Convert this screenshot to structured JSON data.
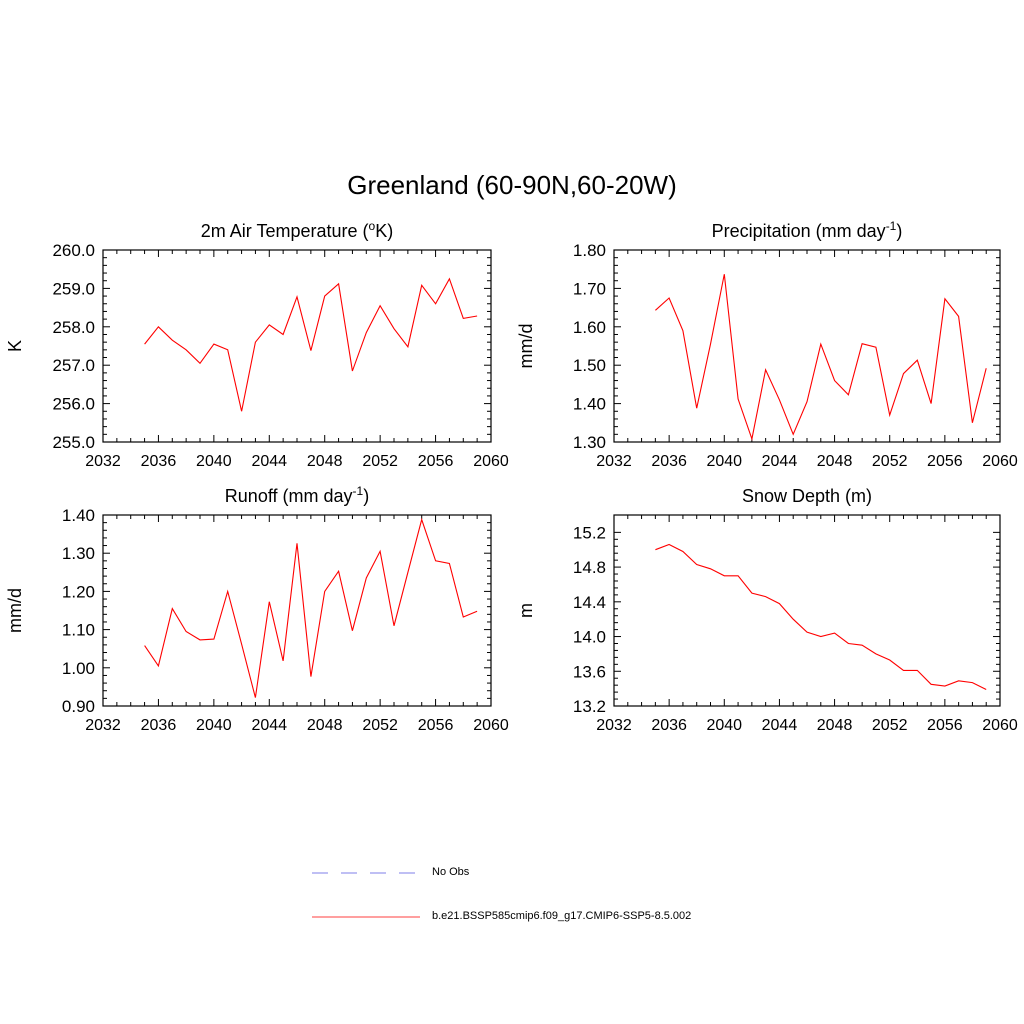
{
  "title": "Greenland (60-90N,60-20W)",
  "legend": {
    "items": [
      {
        "label": "No Obs",
        "color": "#9999ee",
        "dash": true
      },
      {
        "label": "b.e21.BSSP585cmip6.f09_g17.CMIP6-SSP5-8.5.002",
        "color": "#ff3333",
        "dash": false
      }
    ]
  },
  "chart_data": [
    {
      "type": "line",
      "title_main": "2m Air Temperature (",
      "title_sup": "o",
      "title_rest": "K)",
      "ylabel": "K",
      "xlim": [
        2032,
        2060
      ],
      "ylim": [
        255.0,
        260.0
      ],
      "xticks": [
        2032,
        2036,
        2040,
        2044,
        2048,
        2052,
        2056,
        2060
      ],
      "yticks": [
        "255.0",
        "256.0",
        "257.0",
        "258.0",
        "259.0",
        "260.0"
      ],
      "x": [
        2035,
        2036,
        2037,
        2038,
        2039,
        2040,
        2041,
        2042,
        2043,
        2044,
        2045,
        2046,
        2047,
        2048,
        2049,
        2050,
        2051,
        2052,
        2053,
        2054,
        2055,
        2056,
        2057,
        2058,
        2059
      ],
      "series": [
        {
          "color": "#ff0000",
          "values": [
            257.55,
            258.0,
            257.65,
            257.4,
            257.05,
            257.55,
            257.4,
            255.8,
            257.6,
            258.05,
            257.8,
            258.78,
            257.38,
            258.8,
            259.12,
            256.85,
            257.85,
            258.55,
            257.95,
            257.48,
            259.08,
            258.6,
            259.25,
            258.22,
            258.28
          ]
        }
      ]
    },
    {
      "type": "line",
      "title_main": "Precipitation (mm day",
      "title_sup": "-1",
      "title_rest": ")",
      "ylabel": "mm/d",
      "xlim": [
        2032,
        2060
      ],
      "ylim": [
        1.3,
        1.8
      ],
      "xticks": [
        2032,
        2036,
        2040,
        2044,
        2048,
        2052,
        2056,
        2060
      ],
      "yticks": [
        "1.30",
        "1.40",
        "1.50",
        "1.60",
        "1.70",
        "1.80"
      ],
      "x": [
        2035,
        2036,
        2037,
        2038,
        2039,
        2040,
        2041,
        2042,
        2043,
        2044,
        2045,
        2046,
        2047,
        2048,
        2049,
        2050,
        2051,
        2052,
        2053,
        2054,
        2055,
        2056,
        2057,
        2058,
        2059
      ],
      "series": [
        {
          "color": "#ff0000",
          "values": [
            1.643,
            1.675,
            1.59,
            1.388,
            1.555,
            1.737,
            1.412,
            1.308,
            1.488,
            1.41,
            1.32,
            1.405,
            1.555,
            1.46,
            1.423,
            1.556,
            1.547,
            1.37,
            1.478,
            1.513,
            1.4,
            1.673,
            1.627,
            1.35,
            1.492
          ]
        }
      ]
    },
    {
      "type": "line",
      "title_main": "Runoff (mm day",
      "title_sup": "-1",
      "title_rest": ")",
      "ylabel": "mm/d",
      "xlim": [
        2032,
        2060
      ],
      "ylim": [
        0.9,
        1.4
      ],
      "xticks": [
        2032,
        2036,
        2040,
        2044,
        2048,
        2052,
        2056,
        2060
      ],
      "yticks": [
        "0.90",
        "1.00",
        "1.10",
        "1.20",
        "1.30",
        "1.40"
      ],
      "x": [
        2035,
        2036,
        2037,
        2038,
        2039,
        2040,
        2041,
        2042,
        2043,
        2044,
        2045,
        2046,
        2047,
        2048,
        2049,
        2050,
        2051,
        2052,
        2053,
        2054,
        2055,
        2056,
        2057,
        2058,
        2059
      ],
      "series": [
        {
          "color": "#ff0000",
          "values": [
            1.058,
            1.005,
            1.155,
            1.095,
            1.073,
            1.075,
            1.2,
            1.062,
            0.922,
            1.173,
            1.018,
            1.326,
            0.977,
            1.2,
            1.253,
            1.097,
            1.235,
            1.305,
            1.11,
            1.25,
            1.388,
            1.28,
            1.273,
            1.133,
            1.148
          ]
        }
      ]
    },
    {
      "type": "line",
      "title_main": "Snow Depth (m)",
      "title_sup": "",
      "title_rest": "",
      "ylabel": "m",
      "xlim": [
        2032,
        2060
      ],
      "ylim": [
        13.2,
        15.4
      ],
      "xticks": [
        2032,
        2036,
        2040,
        2044,
        2048,
        2052,
        2056,
        2060
      ],
      "yticks": [
        "13.2",
        "13.6",
        "14.0",
        "14.4",
        "14.8",
        "15.2"
      ],
      "x": [
        2035,
        2036,
        2037,
        2038,
        2039,
        2040,
        2041,
        2042,
        2043,
        2044,
        2045,
        2046,
        2047,
        2048,
        2049,
        2050,
        2051,
        2052,
        2053,
        2054,
        2055,
        2056,
        2057,
        2058,
        2059
      ],
      "series": [
        {
          "color": "#ff0000",
          "values": [
            15.0,
            15.06,
            14.98,
            14.83,
            14.78,
            14.7,
            14.7,
            14.5,
            14.46,
            14.38,
            14.2,
            14.05,
            14.0,
            14.04,
            13.92,
            13.9,
            13.8,
            13.73,
            13.61,
            13.61,
            13.45,
            13.43,
            13.49,
            13.47,
            13.39
          ]
        }
      ]
    }
  ]
}
